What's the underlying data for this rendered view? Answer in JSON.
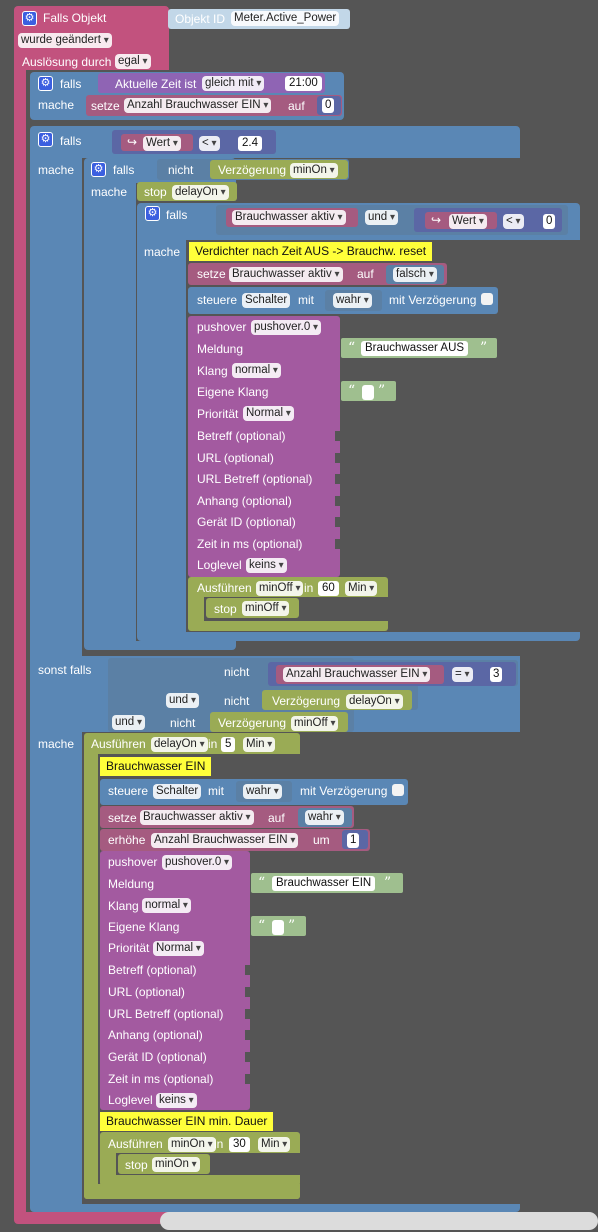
{
  "event": {
    "title": "Falls Objekt",
    "object_label": "Objekt ID",
    "object_id": "Meter.Active_Power",
    "changed": "wurde geändert",
    "trigger_label": "Auslösung durch",
    "trigger_value": "egal"
  },
  "kw": {
    "falls": "falls",
    "mache": "mache",
    "sonst_falls": "sonst falls",
    "nicht": "nicht",
    "und": "und",
    "setze": "setze",
    "auf": "auf",
    "stop": "stop",
    "steuere": "steuere",
    "mit": "mit",
    "mit_verzoegerung": "mit Verzögerung",
    "ausfuehren": "Ausführen",
    "in": "in",
    "erhoehe": "erhöhe",
    "um": "um",
    "verzoegerung": "Verzögerung",
    "wert": "Wert",
    "aktuelle_zeit": "Aktuelle Zeit ist"
  },
  "block1": {
    "compare": "gleich mit",
    "time": "21:00",
    "var": "Anzahl Brauchwasser EIN",
    "value": "0"
  },
  "block2": {
    "op": "<",
    "threshold": "2.4",
    "timer_not": "minOn",
    "stop_timer": "delayOn",
    "var": "Brauchwasser aktiv",
    "logic": "und",
    "op2": "<",
    "value2": "0",
    "comment": "Verdichter nach Zeit AUS -> Brauchw. reset",
    "set_var": "Brauchwasser aktiv",
    "set_value": "falsch",
    "control_target": "Schalter",
    "control_value": "wahr",
    "pushover": {
      "label": "pushover",
      "instance": "pushover.0",
      "meldung": "Meldung",
      "meldung_value": "Brauchwasser AUS",
      "klang": "Klang",
      "klang_value": "normal",
      "eigene_klang": "Eigene Klang",
      "prioritaet": "Priorität",
      "prioritaet_value": "Normal",
      "betreff": "Betreff (optional)",
      "url": "URL (optional)",
      "url_betreff": "URL Betreff (optional)",
      "anhang": "Anhang (optional)",
      "geraet": "Gerät ID (optional)",
      "zeit": "Zeit in ms (optional)",
      "loglevel": "Loglevel",
      "loglevel_value": "keins"
    },
    "run_timer": "minOff",
    "run_delay": "60",
    "run_unit": "Min",
    "inner_stop": "minOff"
  },
  "block3": {
    "var": "Anzahl Brauchwasser EIN",
    "op": "=",
    "value": "3",
    "timer_a": "delayOn",
    "timer_b": "minOff",
    "run_timer": "delayOn",
    "run_delay": "5",
    "run_unit": "Min",
    "comment1": "Brauchwasser EIN",
    "control_target": "Schalter",
    "control_value": "wahr",
    "set_var": "Brauchwasser aktiv",
    "set_value": "wahr",
    "inc_var": "Anzahl Brauchwasser EIN",
    "inc_value": "1",
    "pushover": {
      "label": "pushover",
      "instance": "pushover.0",
      "meldung": "Meldung",
      "meldung_value": "Brauchwasser EIN",
      "klang": "Klang",
      "klang_value": "normal",
      "eigene_klang": "Eigene Klang",
      "prioritaet": "Priorität",
      "prioritaet_value": "Normal",
      "betreff": "Betreff (optional)",
      "url": "URL (optional)",
      "url_betreff": "URL Betreff (optional)",
      "anhang": "Anhang (optional)",
      "geraet": "Gerät ID (optional)",
      "zeit": "Zeit in ms (optional)",
      "loglevel": "Loglevel",
      "loglevel_value": "keins"
    },
    "comment2": "Brauchwasser EIN min. Dauer",
    "run2_timer": "minOn",
    "run2_delay": "30",
    "run2_unit": "Min",
    "inner_stop": "minOn"
  },
  "colors": {
    "event": "#c2527e",
    "control": "#5a87b5",
    "action": "#9aab55",
    "variable": "#a55b80",
    "message": "#a35aa0",
    "comment": "#ffff3a",
    "workspace": "#555555"
  }
}
